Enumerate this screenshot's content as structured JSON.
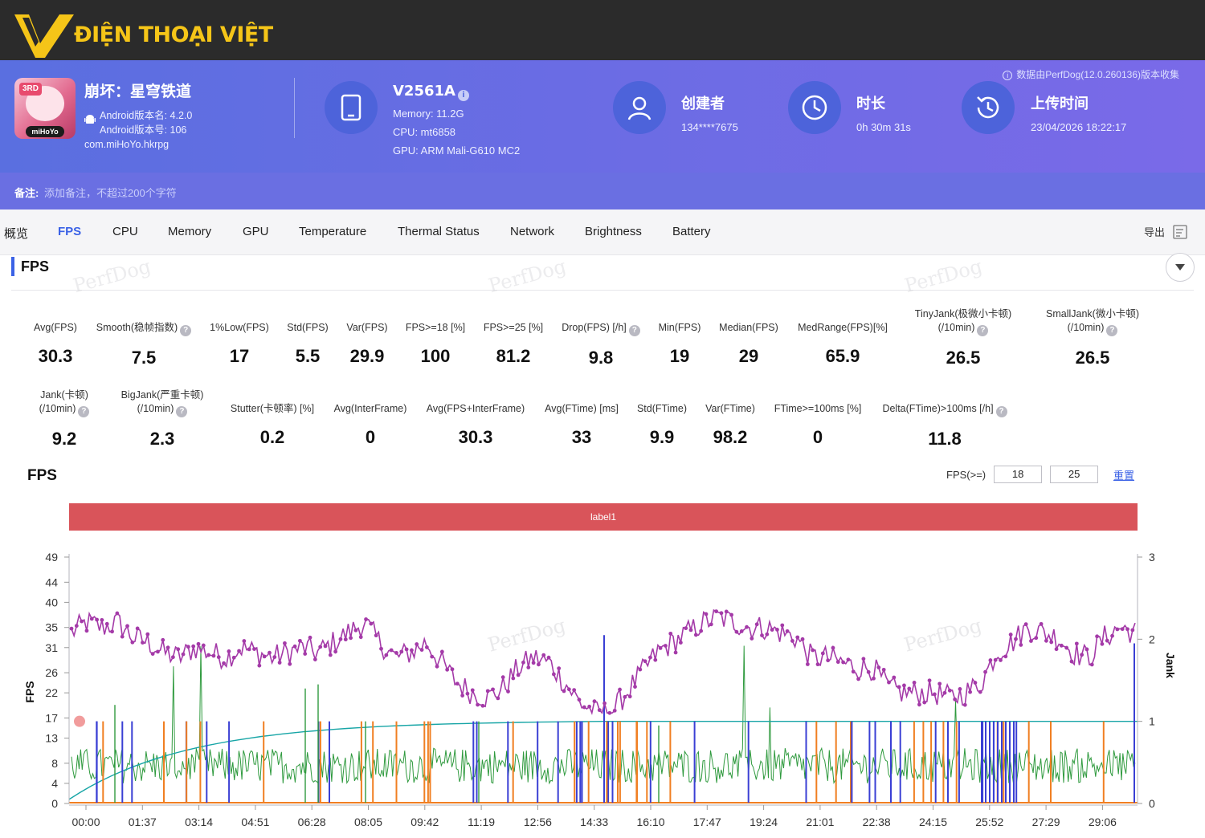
{
  "brand": {
    "name": "ĐIỆN THOẠI VIỆT",
    "color": "#f5c518"
  },
  "app": {
    "title": "崩坏：星穹铁道",
    "version_name": "Android版本名: 4.2.0",
    "version_code": "Android版本号: 106",
    "package": "com.miHoYo.hkrpg",
    "icon_brand": "miHoYo",
    "icon_badge": "3RD"
  },
  "device": {
    "model": "V2561A",
    "memory": "Memory: 11.2G",
    "cpu": "CPU: mt6858",
    "gpu": "GPU: ARM Mali-G610 MC2"
  },
  "creator": {
    "label": "创建者",
    "value": "134****7675"
  },
  "duration": {
    "label": "时长",
    "value": "0h 30m 31s"
  },
  "upload": {
    "label": "上传时间",
    "value": "23/04/2026 18:22:17"
  },
  "source_note": "数据由PerfDog(12.0.260136)版本收集",
  "note": {
    "label": "备注:",
    "placeholder": "添加备注，不超过200个字符"
  },
  "tabs": [
    "概览",
    "FPS",
    "CPU",
    "Memory",
    "GPU",
    "Temperature",
    "Thermal Status",
    "Network",
    "Brightness",
    "Battery"
  ],
  "active_tab": "FPS",
  "export_label": "导出",
  "section_title": "FPS",
  "watermark": "PerfDog",
  "metrics_row1": [
    {
      "label": "Avg(FPS)",
      "value": "30.3"
    },
    {
      "label": "Smooth(稳帧指数)",
      "value": "7.5"
    },
    {
      "label": "1%Low(FPS)",
      "value": "17"
    },
    {
      "label": "Std(FPS)",
      "value": "5.5"
    },
    {
      "label": "Var(FPS)",
      "value": "29.9"
    },
    {
      "label": "FPS>=18 [%]",
      "value": "100"
    },
    {
      "label": "FPS>=25 [%]",
      "value": "81.2"
    },
    {
      "label": "Drop(FPS) [/h]",
      "value": "9.8"
    },
    {
      "label": "Min(FPS)",
      "value": "19"
    },
    {
      "label": "Median(FPS)",
      "value": "29"
    },
    {
      "label": "MedRange(FPS)[%]",
      "value": "65.9"
    },
    {
      "label": "TinyJank(极微小卡顿)",
      "label2": "(/10min)",
      "value": "26.5"
    },
    {
      "label": "SmallJank(微小卡顿)",
      "label2": "(/10min)",
      "value": "26.5"
    }
  ],
  "metrics_row2": [
    {
      "label": "Jank(卡顿)",
      "label2": "(/10min)",
      "value": "9.2"
    },
    {
      "label": "BigJank(严重卡顿)",
      "label2": "(/10min)",
      "value": "2.3"
    },
    {
      "label": "Stutter(卡顿率) [%]",
      "value": "0.2"
    },
    {
      "label": "Avg(InterFrame)",
      "value": "0"
    },
    {
      "label": "Avg(FPS+InterFrame)",
      "value": "30.3"
    },
    {
      "label": "Avg(FTime) [ms]",
      "value": "33"
    },
    {
      "label": "Std(FTime)",
      "value": "9.9"
    },
    {
      "label": "Var(FTime)",
      "value": "98.2"
    },
    {
      "label": "FTime>=100ms [%]",
      "value": "0"
    },
    {
      "label": "Delta(FTime)>100ms [/h]",
      "value": "11.8"
    }
  ],
  "chart_title": "FPS",
  "fps_threshold": {
    "label": "FPS(>=)",
    "low": "18",
    "high": "25"
  },
  "reset_label": "重置",
  "label_bar": "label1",
  "chart_data": {
    "type": "line",
    "ylabel": "FPS",
    "y2label": "Jank",
    "y_ticks": [
      "0",
      "4",
      "8",
      "13",
      "17",
      "22",
      "26",
      "31",
      "35",
      "40",
      "44",
      "49"
    ],
    "y2_ticks": [
      "0",
      "1",
      "2",
      "3"
    ],
    "x_ticks": [
      "00:00",
      "01:37",
      "03:14",
      "04:51",
      "06:28",
      "08:05",
      "09:42",
      "11:19",
      "12:56",
      "14:33",
      "16:10",
      "17:47",
      "19:24",
      "21:01",
      "22:38",
      "24:15",
      "25:52",
      "27:29",
      "29:06"
    ],
    "ylim": [
      0,
      49
    ],
    "y2lim": [
      0,
      3
    ],
    "fps_profile": [
      34,
      36,
      35,
      36,
      33,
      32,
      30,
      29,
      31,
      30,
      29,
      31,
      30,
      29,
      30,
      31,
      30,
      32,
      34,
      36,
      32,
      29,
      30,
      32,
      28,
      24,
      22,
      21,
      23,
      27,
      29,
      28,
      24,
      20,
      18,
      18,
      22,
      26,
      30,
      32,
      34,
      36,
      37,
      36,
      35,
      35,
      34,
      33,
      29,
      29,
      28,
      27,
      27,
      23,
      22,
      22,
      22,
      21,
      22,
      24,
      30,
      32,
      35,
      34,
      33,
      30,
      29,
      33,
      35,
      34
    ],
    "series": [
      {
        "name": "FPS",
        "color": "#a43aa8"
      },
      {
        "name": "InterFrame",
        "color": "#2f9a3e"
      },
      {
        "name": "Avg(FPS)",
        "color": "#17a5a6"
      },
      {
        "name": "Jank",
        "color": "#f07f22"
      },
      {
        "name": "BigJank",
        "color": "#3a3fd4"
      }
    ]
  }
}
